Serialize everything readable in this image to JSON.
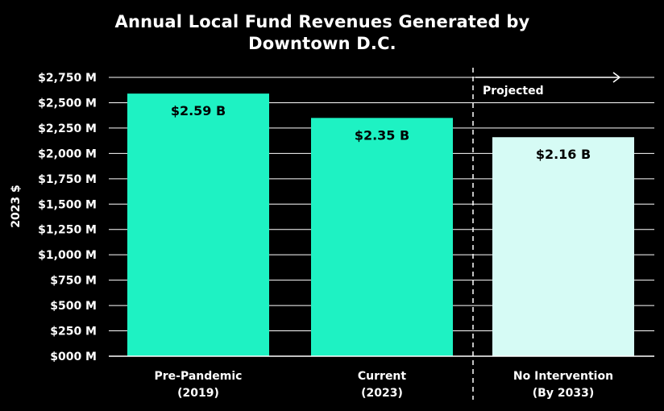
{
  "chart_data": {
    "type": "bar",
    "title_line1": "Annual Local Fund Revenues Generated by",
    "title_line2": "Downtown D.C.",
    "ylabel": "2023 $",
    "categories": [
      {
        "line1": "Pre-Pandemic",
        "line2": "(2019)"
      },
      {
        "line1": "Current",
        "line2": "(2023)"
      },
      {
        "line1": "No Intervention",
        "line2": "(By 2033)"
      }
    ],
    "values": [
      2590,
      2350,
      2160
    ],
    "value_labels": [
      "$2.59 B",
      "$2.35 B",
      "$2.16 B"
    ],
    "bar_colors": [
      "#1ef2c3",
      "#1ef2c3",
      "#d6fbf5"
    ],
    "yticks": [
      0,
      250,
      500,
      750,
      1000,
      1250,
      1500,
      1750,
      2000,
      2250,
      2500,
      2750
    ],
    "ytick_labels": [
      "$000 M",
      "$250 M",
      "$500 M",
      "$750 M",
      "$1,000 M",
      "$1,250 M",
      "$1,500 M",
      "$1,750 M",
      "$2,000 M",
      "$2,250 M",
      "$2,500 M",
      "$2,750 M"
    ],
    "ylim": [
      0,
      2750
    ],
    "grid": true,
    "projected_label": "Projected"
  }
}
